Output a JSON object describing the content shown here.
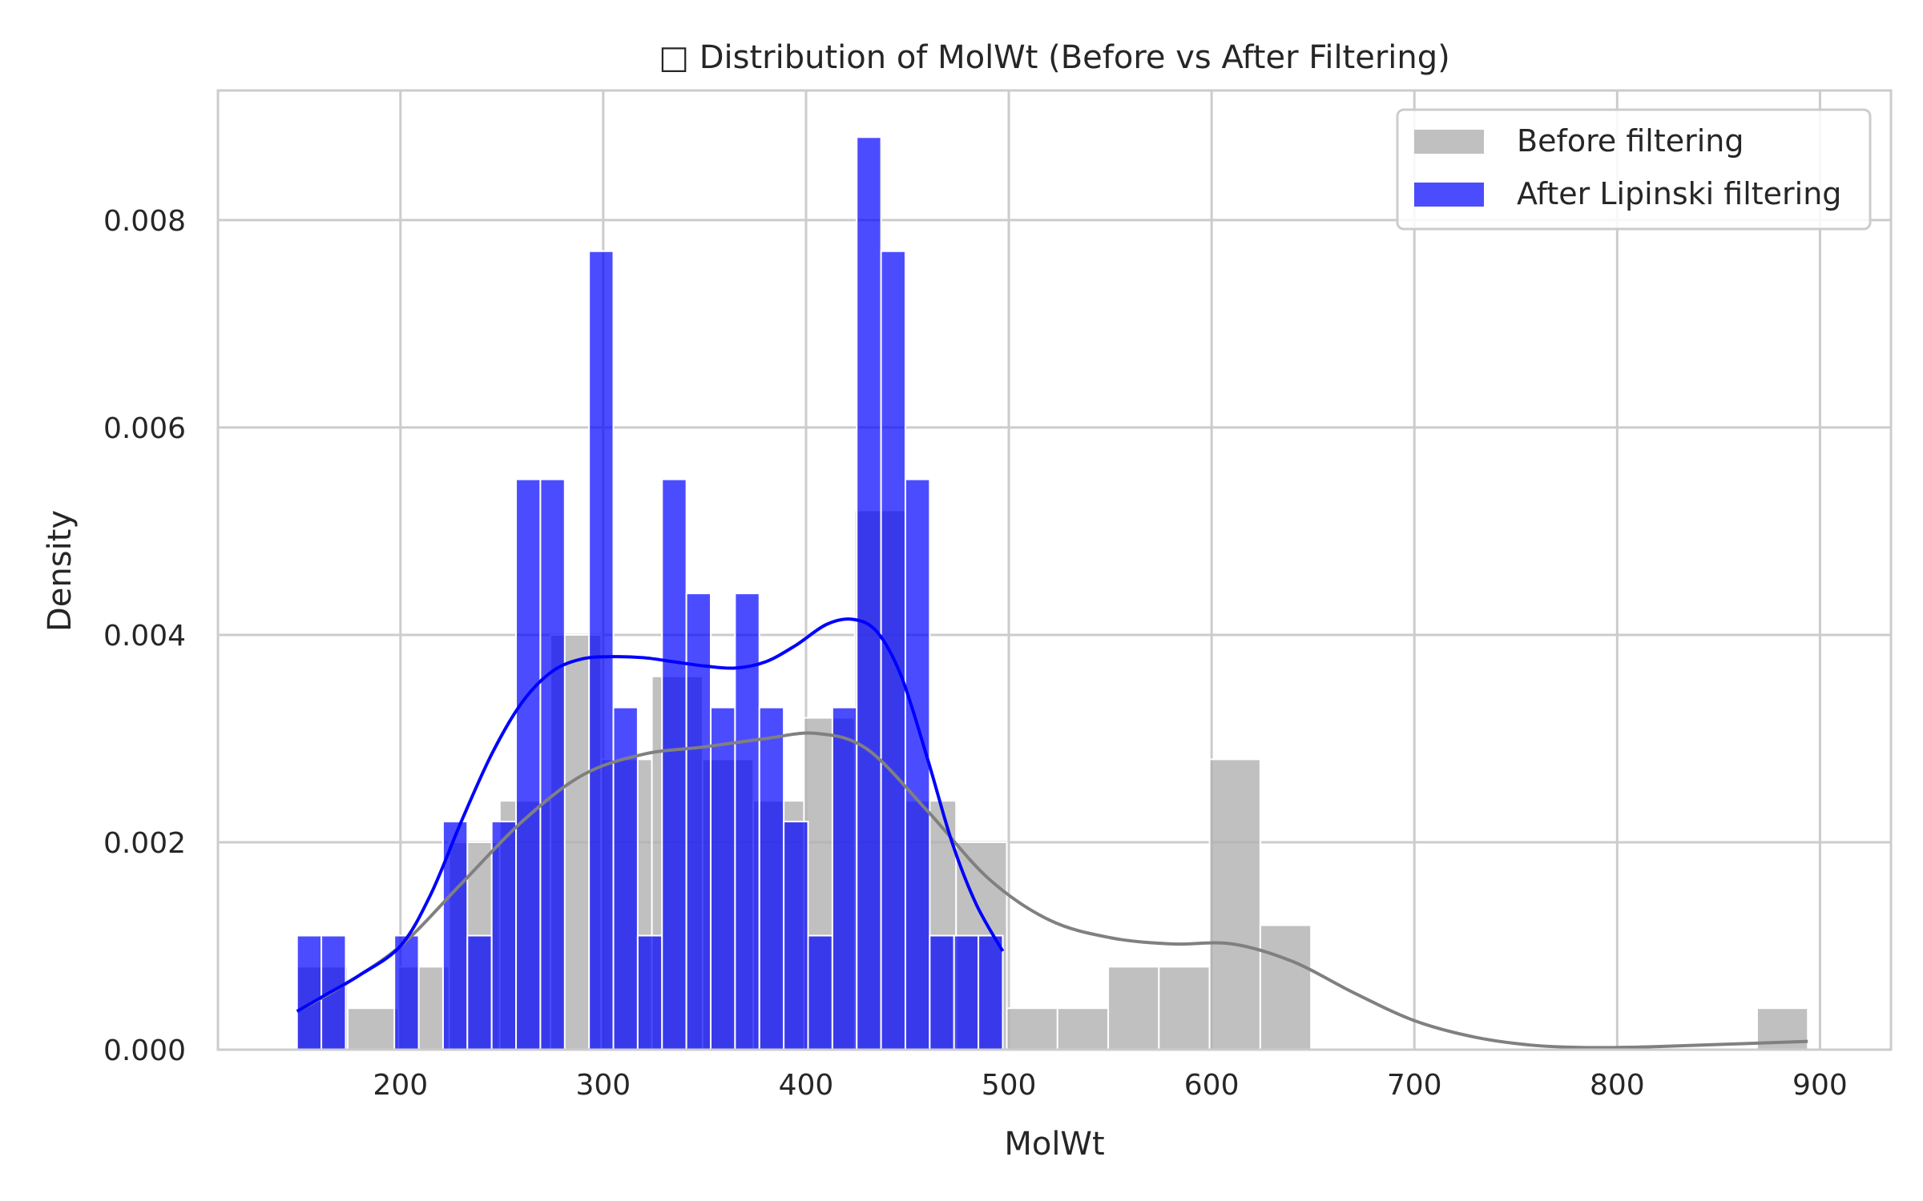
{
  "chart_data": {
    "type": "bar",
    "title": "□ Distribution of MolWt (Before vs After Filtering)",
    "xlabel": "MolWt",
    "ylabel": "Density",
    "xlim": [
      110,
      935
    ],
    "ylim": [
      0,
      0.00925
    ],
    "xticks": [
      200,
      300,
      400,
      500,
      600,
      700,
      800,
      900
    ],
    "yticks": [
      0.0,
      0.002,
      0.004,
      0.006,
      0.008
    ],
    "ytick_labels": [
      "0.000",
      "0.002",
      "0.004",
      "0.006",
      "0.008"
    ],
    "grid": true,
    "legend_position": "upper right",
    "series": [
      {
        "name": "Before filtering",
        "color": "#b0b0b0",
        "opacity": 0.8,
        "bins": [
          {
            "x0": 149,
            "x1": 174,
            "value": 0.0008
          },
          {
            "x0": 174,
            "x1": 199,
            "value": 0.0004
          },
          {
            "x0": 199,
            "x1": 224,
            "value": 0.0008
          },
          {
            "x0": 224,
            "x1": 249,
            "value": 0.002
          },
          {
            "x0": 249,
            "x1": 274,
            "value": 0.0024
          },
          {
            "x0": 274,
            "x1": 299,
            "value": 0.004
          },
          {
            "x0": 299,
            "x1": 324,
            "value": 0.0028
          },
          {
            "x0": 324,
            "x1": 349,
            "value": 0.0036
          },
          {
            "x0": 349,
            "x1": 374,
            "value": 0.0028
          },
          {
            "x0": 374,
            "x1": 399,
            "value": 0.0024
          },
          {
            "x0": 399,
            "x1": 424,
            "value": 0.0032
          },
          {
            "x0": 424,
            "x1": 449,
            "value": 0.0052
          },
          {
            "x0": 449,
            "x1": 474,
            "value": 0.0024
          },
          {
            "x0": 474,
            "x1": 499,
            "value": 0.002
          },
          {
            "x0": 499,
            "x1": 524,
            "value": 0.0004
          },
          {
            "x0": 524,
            "x1": 549,
            "value": 0.0004
          },
          {
            "x0": 549,
            "x1": 574,
            "value": 0.0008
          },
          {
            "x0": 574,
            "x1": 599,
            "value": 0.0008
          },
          {
            "x0": 599,
            "x1": 624,
            "value": 0.0028
          },
          {
            "x0": 624,
            "x1": 649,
            "value": 0.0012
          },
          {
            "x0": 869,
            "x1": 894,
            "value": 0.0004
          }
        ],
        "kde_color": "#808080",
        "kde": [
          [
            149,
            0.00037
          ],
          [
            170,
            0.0006
          ],
          [
            200,
            0.001
          ],
          [
            230,
            0.0016
          ],
          [
            260,
            0.0022
          ],
          [
            290,
            0.00265
          ],
          [
            320,
            0.00285
          ],
          [
            350,
            0.00292
          ],
          [
            380,
            0.003
          ],
          [
            405,
            0.00305
          ],
          [
            430,
            0.0029
          ],
          [
            460,
            0.0023
          ],
          [
            490,
            0.00165
          ],
          [
            520,
            0.00125
          ],
          [
            550,
            0.00108
          ],
          [
            580,
            0.00102
          ],
          [
            610,
            0.00102
          ],
          [
            640,
            0.00085
          ],
          [
            670,
            0.00055
          ],
          [
            700,
            0.00028
          ],
          [
            730,
            0.00012
          ],
          [
            760,
            4e-05
          ],
          [
            790,
            2e-05
          ],
          [
            820,
            3e-05
          ],
          [
            850,
            5e-05
          ],
          [
            880,
            7e-05
          ],
          [
            894,
            8e-05
          ]
        ]
      },
      {
        "name": "After Lipinski filtering",
        "color": "#0000ff",
        "opacity": 0.7,
        "bins": [
          {
            "x0": 149,
            "x1": 161,
            "value": 0.0011
          },
          {
            "x0": 161,
            "x1": 173,
            "value": 0.0011
          },
          {
            "x0": 173,
            "x1": 185,
            "value": 0.0
          },
          {
            "x0": 185,
            "x1": 197,
            "value": 0.0
          },
          {
            "x0": 197,
            "x1": 209,
            "value": 0.0011
          },
          {
            "x0": 209,
            "x1": 221,
            "value": 0.0
          },
          {
            "x0": 221,
            "x1": 233,
            "value": 0.0022
          },
          {
            "x0": 233,
            "x1": 245,
            "value": 0.0011
          },
          {
            "x0": 245,
            "x1": 257,
            "value": 0.0022
          },
          {
            "x0": 257,
            "x1": 269,
            "value": 0.0055
          },
          {
            "x0": 269,
            "x1": 281,
            "value": 0.0055
          },
          {
            "x0": 281,
            "x1": 293,
            "value": 0.0
          },
          {
            "x0": 293,
            "x1": 305,
            "value": 0.0077
          },
          {
            "x0": 305,
            "x1": 317,
            "value": 0.0033
          },
          {
            "x0": 317,
            "x1": 329,
            "value": 0.0011
          },
          {
            "x0": 329,
            "x1": 341,
            "value": 0.0055
          },
          {
            "x0": 341,
            "x1": 353,
            "value": 0.0044
          },
          {
            "x0": 353,
            "x1": 365,
            "value": 0.0033
          },
          {
            "x0": 365,
            "x1": 377,
            "value": 0.0044
          },
          {
            "x0": 377,
            "x1": 389,
            "value": 0.0033
          },
          {
            "x0": 389,
            "x1": 401,
            "value": 0.0022
          },
          {
            "x0": 401,
            "x1": 413,
            "value": 0.0011
          },
          {
            "x0": 413,
            "x1": 425,
            "value": 0.0033
          },
          {
            "x0": 425,
            "x1": 437,
            "value": 0.0088
          },
          {
            "x0": 437,
            "x1": 449,
            "value": 0.0077
          },
          {
            "x0": 449,
            "x1": 461,
            "value": 0.0055
          },
          {
            "x0": 461,
            "x1": 473,
            "value": 0.0011
          },
          {
            "x0": 473,
            "x1": 485,
            "value": 0.0011
          },
          {
            "x0": 485,
            "x1": 497,
            "value": 0.0011
          }
        ],
        "kde_color": "#0000ff",
        "kde": [
          [
            149,
            0.00037
          ],
          [
            165,
            0.00055
          ],
          [
            180,
            0.00072
          ],
          [
            200,
            0.001
          ],
          [
            215,
            0.0015
          ],
          [
            230,
            0.0022
          ],
          [
            245,
            0.00285
          ],
          [
            260,
            0.00335
          ],
          [
            275,
            0.00365
          ],
          [
            290,
            0.00377
          ],
          [
            305,
            0.00379
          ],
          [
            320,
            0.00378
          ],
          [
            335,
            0.00374
          ],
          [
            350,
            0.0037
          ],
          [
            365,
            0.00368
          ],
          [
            380,
            0.00374
          ],
          [
            395,
            0.0039
          ],
          [
            410,
            0.0041
          ],
          [
            423,
            0.00415
          ],
          [
            435,
            0.00403
          ],
          [
            447,
            0.0036
          ],
          [
            460,
            0.0028
          ],
          [
            472,
            0.002
          ],
          [
            484,
            0.0014
          ],
          [
            497,
            0.00095
          ]
        ]
      }
    ]
  }
}
